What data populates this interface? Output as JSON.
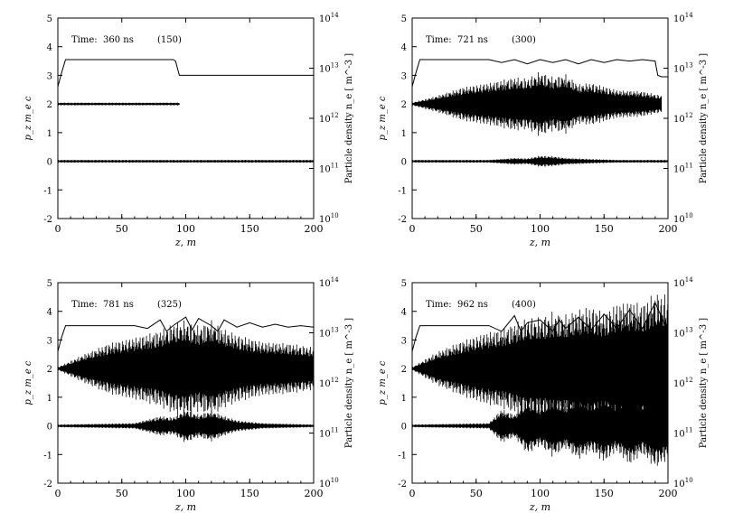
{
  "figure": {
    "ylabel_left": "p_z  m_e c",
    "ylabel_right": "Particle density n_e  [ m^-3 ]",
    "xlabel": "z, m"
  },
  "chart_data": [
    {
      "type": "scatter",
      "time_label": "Time:",
      "time_value": "360 ns",
      "step": "(150)",
      "xlim": [
        0,
        200
      ],
      "ylim_left": [
        -2,
        5
      ],
      "right_axis": {
        "scale": "log",
        "range": [
          10000000000.0,
          100000000000000.0
        ]
      },
      "xticks": [
        "0",
        "50",
        "100",
        "150",
        "200"
      ],
      "yticks_left": [
        "-2",
        "-1",
        "0",
        "1",
        "2",
        "3",
        "4",
        "5"
      ],
      "yticks_right": [
        "10",
        "10",
        "10",
        "10",
        "10"
      ],
      "yticks_right_exp": [
        "10",
        "11",
        "12",
        "13",
        "14"
      ],
      "series": [
        {
          "kind": "density-line",
          "x": [
            0,
            3,
            6,
            90,
            92,
            95,
            200
          ],
          "y": [
            2.6,
            3.1,
            3.55,
            3.55,
            3.5,
            3.0,
            3.0
          ]
        },
        {
          "kind": "beam-momentum",
          "x": [
            0,
            95
          ],
          "y_center": 2.0,
          "amplitude": [
            0.05,
            0.05
          ]
        },
        {
          "kind": "plasma-momentum",
          "x": [
            0,
            200
          ],
          "y_center": 0.0,
          "amplitude": [
            0.05,
            0.05
          ]
        }
      ]
    },
    {
      "type": "scatter",
      "time_label": "Time:",
      "time_value": "721 ns",
      "step": "(300)",
      "xlim": [
        0,
        200
      ],
      "ylim_left": [
        -2,
        5
      ],
      "right_axis": {
        "scale": "log",
        "range": [
          10000000000.0,
          100000000000000.0
        ]
      },
      "xticks": [
        "0",
        "50",
        "100",
        "150",
        "200"
      ],
      "yticks_left": [
        "-2",
        "-1",
        "0",
        "1",
        "2",
        "3",
        "4",
        "5"
      ],
      "yticks_right": [
        "10",
        "10",
        "10",
        "10",
        "10"
      ],
      "yticks_right_exp": [
        "10",
        "11",
        "12",
        "13",
        "14"
      ],
      "series": [
        {
          "kind": "density-line",
          "x": [
            0,
            3,
            6,
            60,
            70,
            80,
            90,
            100,
            110,
            120,
            130,
            140,
            150,
            160,
            170,
            180,
            190,
            192,
            195,
            200
          ],
          "y": [
            2.6,
            3.1,
            3.55,
            3.55,
            3.45,
            3.55,
            3.4,
            3.55,
            3.45,
            3.55,
            3.4,
            3.55,
            3.45,
            3.55,
            3.5,
            3.55,
            3.5,
            3.0,
            2.95,
            2.95
          ]
        },
        {
          "kind": "beam-momentum",
          "x": [
            0,
            20,
            40,
            60,
            80,
            90,
            100,
            110,
            120,
            130,
            140,
            160,
            180,
            195
          ],
          "y_center": 2.0,
          "amplitude": [
            0.05,
            0.3,
            0.6,
            0.75,
            0.95,
            0.9,
            1.15,
            0.95,
            1.05,
            0.7,
            0.75,
            0.5,
            0.45,
            0.3
          ]
        },
        {
          "kind": "plasma-momentum",
          "x": [
            0,
            60,
            80,
            90,
            100,
            110,
            120,
            140,
            160,
            200
          ],
          "y_center": 0.0,
          "amplitude": [
            0.05,
            0.05,
            0.12,
            0.1,
            0.2,
            0.18,
            0.12,
            0.08,
            0.05,
            0.05
          ]
        }
      ]
    },
    {
      "type": "scatter",
      "time_label": "Time:",
      "time_value": "781 ns",
      "step": "(325)",
      "xlim": [
        0,
        200
      ],
      "ylim_left": [
        -2,
        5
      ],
      "right_axis": {
        "scale": "log",
        "range": [
          10000000000.0,
          100000000000000.0
        ]
      },
      "xticks": [
        "0",
        "50",
        "100",
        "150",
        "200"
      ],
      "yticks_left": [
        "-2",
        "-1",
        "0",
        "1",
        "2",
        "3",
        "4",
        "5"
      ],
      "yticks_right": [
        "10",
        "10",
        "10",
        "10",
        "10"
      ],
      "yticks_right_exp": [
        "10",
        "11",
        "12",
        "13",
        "14"
      ],
      "series": [
        {
          "kind": "density-line",
          "x": [
            0,
            3,
            6,
            60,
            70,
            80,
            85,
            90,
            100,
            105,
            110,
            120,
            125,
            130,
            140,
            150,
            160,
            170,
            180,
            190,
            200
          ],
          "y": [
            2.6,
            3.1,
            3.5,
            3.5,
            3.4,
            3.7,
            3.3,
            3.5,
            3.8,
            3.35,
            3.75,
            3.5,
            3.3,
            3.7,
            3.45,
            3.6,
            3.45,
            3.55,
            3.45,
            3.5,
            3.45
          ]
        },
        {
          "kind": "beam-momentum",
          "x": [
            0,
            20,
            40,
            60,
            80,
            90,
            100,
            110,
            120,
            130,
            140,
            160,
            180,
            200
          ],
          "y_center": 2.0,
          "amplitude": [
            0.05,
            0.5,
            0.9,
            1.1,
            1.35,
            1.6,
            1.7,
            1.5,
            1.7,
            1.4,
            1.2,
            0.95,
            0.9,
            0.75
          ]
        },
        {
          "kind": "plasma-momentum",
          "x": [
            0,
            60,
            80,
            90,
            100,
            110,
            120,
            130,
            140,
            160,
            200
          ],
          "y_center": 0.0,
          "amplitude": [
            0.05,
            0.1,
            0.35,
            0.3,
            0.6,
            0.4,
            0.55,
            0.35,
            0.2,
            0.1,
            0.05
          ]
        }
      ]
    },
    {
      "type": "scatter",
      "time_label": "Time:",
      "time_value": "962 ns",
      "step": "(400)",
      "xlim": [
        0,
        200
      ],
      "ylim_left": [
        -2,
        5
      ],
      "right_axis": {
        "scale": "log",
        "range": [
          10000000000.0,
          100000000000000.0
        ]
      },
      "xticks": [
        "0",
        "50",
        "100",
        "150",
        "200"
      ],
      "yticks_left": [
        "-2",
        "-1",
        "0",
        "1",
        "2",
        "3",
        "4",
        "5"
      ],
      "yticks_right": [
        "10",
        "10",
        "10",
        "10",
        "10"
      ],
      "yticks_right_exp": [
        "10",
        "11",
        "12",
        "13",
        "14"
      ],
      "series": [
        {
          "kind": "density-line",
          "x": [
            0,
            3,
            6,
            60,
            70,
            80,
            85,
            90,
            100,
            110,
            115,
            120,
            130,
            140,
            150,
            160,
            170,
            180,
            190,
            200
          ],
          "y": [
            2.6,
            3.1,
            3.5,
            3.5,
            3.3,
            3.85,
            3.3,
            3.6,
            3.7,
            3.3,
            3.7,
            3.4,
            3.8,
            3.35,
            3.9,
            3.4,
            4.05,
            3.4,
            4.3,
            3.3
          ]
        },
        {
          "kind": "beam-momentum",
          "x": [
            0,
            20,
            40,
            60,
            70,
            80,
            90,
            100,
            110,
            120,
            130,
            140,
            150,
            160,
            170,
            180,
            190,
            200
          ],
          "y_center": 2.0,
          "amplitude": [
            0.05,
            0.6,
            1.0,
            1.3,
            1.4,
            1.6,
            1.8,
            1.8,
            2.0,
            1.9,
            2.1,
            2.2,
            2.0,
            2.3,
            2.4,
            2.3,
            2.7,
            2.6
          ]
        },
        {
          "kind": "plasma-momentum",
          "x": [
            0,
            60,
            70,
            80,
            90,
            100,
            110,
            120,
            130,
            140,
            150,
            160,
            170,
            180,
            190,
            200
          ],
          "y_center": 0.0,
          "amplitude": [
            0.05,
            0.1,
            0.6,
            0.4,
            1.0,
            0.7,
            1.1,
            0.8,
            1.2,
            0.9,
            1.3,
            0.9,
            1.4,
            1.0,
            1.5,
            1.2
          ]
        }
      ]
    }
  ]
}
